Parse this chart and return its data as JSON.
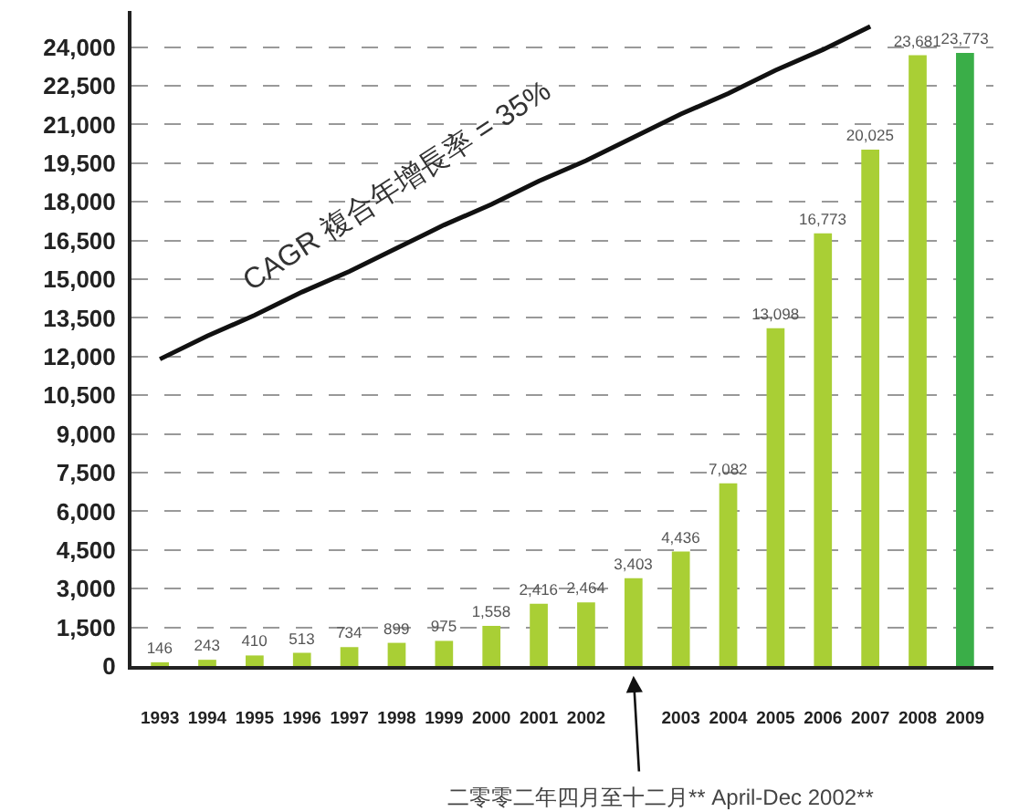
{
  "chart_data": {
    "type": "bar",
    "categories": [
      "1993",
      "1994",
      "1995",
      "1996",
      "1997",
      "1998",
      "1999",
      "2000",
      "2001",
      "2002",
      null,
      "2003",
      "2004",
      "2005",
      "2006",
      "2007",
      "2008",
      "2009"
    ],
    "series": [
      {
        "values": [
          146,
          243,
          410,
          513,
          734,
          899,
          975,
          1558,
          2416,
          2464,
          3403,
          4436,
          7082,
          13098,
          16773,
          20025,
          23681,
          23773
        ],
        "value_labels": [
          "146",
          "243",
          "410",
          "513",
          "734",
          "899",
          "975",
          "1,558",
          "2,416",
          "2,464",
          "3,403",
          "4,436",
          "7,082",
          "13,098",
          "16,773",
          "20,025",
          "23,681",
          "23,773"
        ],
        "colors": [
          "#a9cf35",
          "#a9cf35",
          "#a9cf35",
          "#a9cf35",
          "#a9cf35",
          "#a9cf35",
          "#a9cf35",
          "#a9cf35",
          "#a9cf35",
          "#a9cf35",
          "#a9cf35",
          "#a9cf35",
          "#a9cf35",
          "#a9cf35",
          "#a9cf35",
          "#a9cf35",
          "#a9cf35",
          "#3aae48"
        ]
      },
      {
        "type": "line",
        "values": [
          11900,
          12800,
          13600,
          14500,
          15300,
          16200,
          17100,
          17900,
          18800,
          19600,
          20500,
          21400,
          22200,
          23100,
          23900,
          24800,
          null,
          null
        ],
        "color": "#111111"
      }
    ],
    "ylim": [
      0,
      25400
    ],
    "yticks": [
      0,
      {
        "value": 1500,
        "label": "1,500"
      },
      {
        "value": 3000,
        "label": "3,000"
      },
      {
        "value": 4500,
        "label": "4,500"
      },
      {
        "value": 6000,
        "label": "6,000"
      },
      {
        "value": 7500,
        "label": "7,500"
      },
      {
        "value": 9000,
        "label": "9,000"
      },
      {
        "value": 10500,
        "label": "10,500"
      },
      {
        "value": 12000,
        "label": "12,000"
      },
      {
        "value": 13500,
        "label": "13,500"
      },
      {
        "value": 15000,
        "label": "15,000"
      },
      {
        "value": 16500,
        "label": "16,500"
      },
      {
        "value": 18000,
        "label": "18,000"
      },
      {
        "value": 19500,
        "label": "19,500"
      },
      {
        "value": 21000,
        "label": "21,000"
      },
      {
        "value": 22500,
        "label": "22,500"
      },
      {
        "value": 24000,
        "label": "24,000"
      }
    ],
    "grid": "y",
    "annotations": [
      "CAGR 複合年增長率 = 35%",
      "二零零二年四月至十二月** April-Dec 2002**"
    ]
  }
}
